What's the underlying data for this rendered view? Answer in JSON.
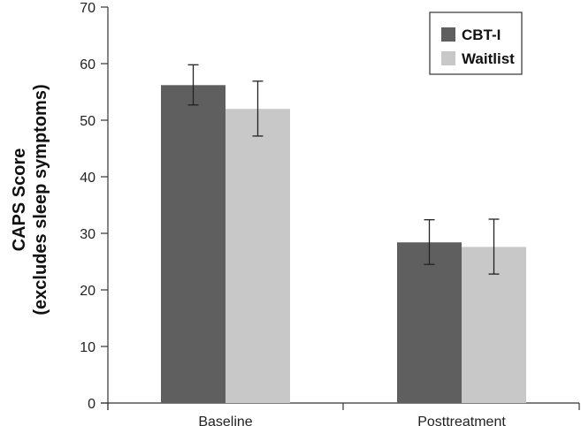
{
  "chart_data": {
    "type": "bar",
    "title": "",
    "xlabel": "",
    "ylabel": [
      "CAPS Score",
      "(excludes sleep symptoms)"
    ],
    "ylim": [
      0,
      70
    ],
    "yticks": [
      0,
      10,
      20,
      30,
      40,
      50,
      60,
      70
    ],
    "grid": false,
    "categories": [
      "Baseline",
      "Posttreatment"
    ],
    "legend_position": "top-right",
    "series": [
      {
        "name": "CBT-I",
        "color": "#5f5f5f",
        "values": [
          56.2,
          28.4
        ],
        "error_low": [
          52.7,
          24.5
        ],
        "error_high": [
          59.8,
          32.4
        ]
      },
      {
        "name": "Waitlist",
        "color": "#c8c8c8",
        "values": [
          52.0,
          27.6
        ],
        "error_low": [
          47.2,
          22.8
        ],
        "error_high": [
          56.9,
          32.5
        ]
      }
    ]
  }
}
